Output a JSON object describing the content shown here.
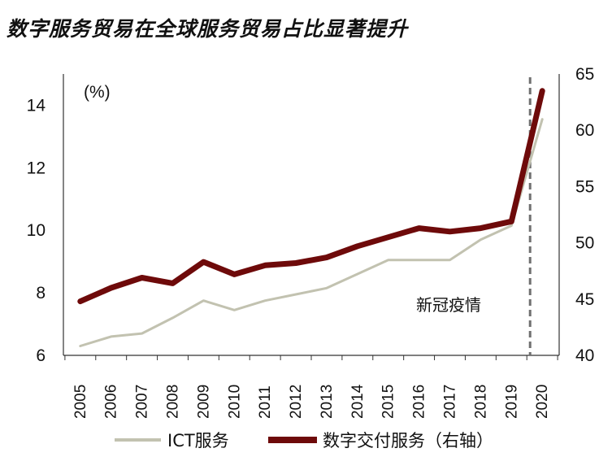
{
  "chart_data": {
    "type": "line",
    "title": "数字服务贸易在全球服务贸易占比显著提升",
    "unit_label": "(%)",
    "x": [
      "2005",
      "2006",
      "2007",
      "2008",
      "2009",
      "2010",
      "2011",
      "2012",
      "2013",
      "2014",
      "2015",
      "2016",
      "2017",
      "2018",
      "2019",
      "2020"
    ],
    "y_left": {
      "ticks": [
        "6",
        "8",
        "10",
        "12",
        "14"
      ],
      "range": [
        6,
        15
      ]
    },
    "y_right": {
      "ticks": [
        "40",
        "45",
        "50",
        "55",
        "60",
        "65"
      ],
      "range": [
        40,
        65
      ]
    },
    "series": [
      {
        "name": "ICT服务",
        "axis": "left",
        "color": "#c2c2b0",
        "values": [
          6.3,
          6.6,
          6.7,
          7.2,
          7.75,
          7.45,
          7.75,
          7.95,
          8.15,
          8.6,
          9.05,
          9.05,
          9.05,
          9.7,
          10.15,
          13.55
        ]
      },
      {
        "name": "数字交付服务（右轴）",
        "axis": "right",
        "color": "#6e0a0a",
        "values": [
          44.8,
          46.0,
          46.9,
          46.4,
          48.3,
          47.2,
          48.0,
          48.2,
          48.7,
          49.7,
          50.5,
          51.3,
          51.0,
          51.3,
          51.9,
          63.5
        ]
      }
    ],
    "annotation": {
      "text": "新冠疫情",
      "between": [
        "2019",
        "2020"
      ]
    }
  }
}
